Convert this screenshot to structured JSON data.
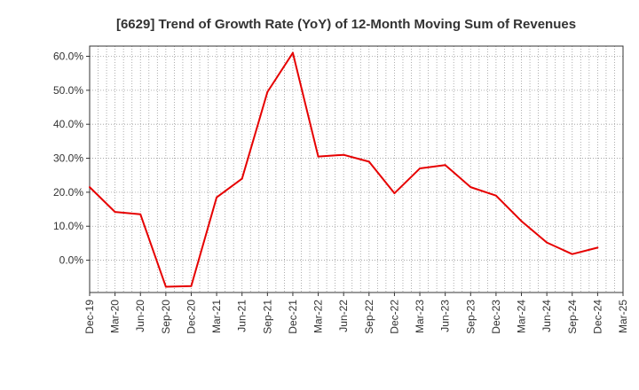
{
  "chart_data": {
    "type": "line",
    "title": "[6629]  Trend of Growth Rate (YoY) of 12-Month Moving Sum of Revenues",
    "xlabel": "",
    "ylabel": "",
    "y_unit": "%",
    "ylim": [
      -9.5,
      63
    ],
    "y_ticks": [
      0,
      10,
      20,
      30,
      40,
      50,
      60
    ],
    "y_tick_labels": [
      "0.0%",
      "10.0%",
      "20.0%",
      "30.0%",
      "40.0%",
      "50.0%",
      "60.0%"
    ],
    "x_tick_labels": [
      "Dec-19",
      "Mar-20",
      "Jun-20",
      "Sep-20",
      "Dec-20",
      "Mar-21",
      "Jun-21",
      "Sep-21",
      "Dec-21",
      "Mar-22",
      "Jun-22",
      "Sep-22",
      "Dec-22",
      "Mar-23",
      "Jun-23",
      "Sep-23",
      "Dec-23",
      "Mar-24",
      "Jun-24",
      "Sep-24",
      "Dec-24",
      "Mar-25"
    ],
    "grid": true,
    "series": [
      {
        "name": "",
        "color": "#e60000",
        "x": [
          "Dec-19",
          "Mar-20",
          "Jun-20",
          "Sep-20",
          "Dec-20",
          "Mar-21",
          "Jun-21",
          "Sep-21",
          "Dec-21",
          "Mar-22",
          "Jun-22",
          "Sep-22",
          "Dec-22",
          "Mar-23",
          "Jun-23",
          "Sep-23",
          "Dec-23",
          "Mar-24",
          "Jun-24",
          "Sep-24",
          "Dec-24"
        ],
        "values": [
          21.5,
          14.2,
          13.5,
          -7.8,
          -7.6,
          18.5,
          24.0,
          49.5,
          61.0,
          30.5,
          31.0,
          29.0,
          19.7,
          27.0,
          28.0,
          21.5,
          19.0,
          11.5,
          5.2,
          1.8,
          3.7
        ]
      }
    ]
  }
}
